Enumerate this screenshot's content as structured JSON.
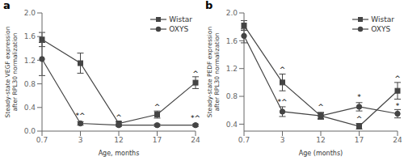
{
  "chart_data": [
    {
      "type": "line",
      "title": "a",
      "x_label": "Age, months",
      "y_label": "Steady-state VEGF expression\nafter RPL30 normalization",
      "categories": [
        "0.7",
        "3",
        "12",
        "17",
        "24"
      ],
      "series": [
        {
          "name": "Wistar",
          "color": "#444444",
          "marker": "square",
          "line_style": "solid",
          "values": [
            1.55,
            1.15,
            0.13,
            0.28,
            0.82
          ],
          "error": [
            0.12,
            0.17,
            0.03,
            0.06,
            0.1
          ]
        },
        {
          "name": "OXYS",
          "color": "#444444",
          "marker": "circle",
          "line_style": "solid",
          "values": [
            1.22,
            0.13,
            0.1,
            0.1,
            0.1
          ],
          "error": [
            0.28,
            0.03,
            0.02,
            0.02,
            0.02
          ]
        }
      ],
      "ylim": [
        0.0,
        2.0
      ],
      "yticks": [
        {
          "value": 0,
          "label": "0.0"
        },
        0.4,
        0.8,
        1.2,
        1.6,
        {
          "value": 2,
          "label": "2.0"
        }
      ],
      "annotations": [
        {
          "text": "*^",
          "x": "3",
          "y": 0.21
        },
        {
          "text": "^",
          "x": "12",
          "y": 0.18
        },
        {
          "text": "^",
          "x": "17",
          "y": 0.35
        },
        {
          "text": "^",
          "x": "24",
          "y": 0.92
        },
        {
          "text": "*^",
          "x": "24",
          "y": 0.17
        }
      ],
      "legend": "upper right",
      "grid": false
    },
    {
      "type": "line",
      "title": "b",
      "x_label": "Age (months)",
      "y_label": "Steady-state PEDF expression\nafter RPL30 normalization",
      "categories": [
        "0.7",
        "3",
        "12",
        "17",
        "24"
      ],
      "series": [
        {
          "name": "Wistar",
          "color": "#444444",
          "marker": "square",
          "line_style": "solid",
          "values": [
            1.82,
            1.0,
            0.52,
            0.37,
            0.88
          ],
          "error": [
            0.07,
            0.12,
            0.05,
            0.04,
            0.12
          ]
        },
        {
          "name": "OXYS",
          "color": "#444444",
          "marker": "circle",
          "line_style": "solid",
          "values": [
            1.67,
            0.58,
            0.52,
            0.65,
            0.55
          ],
          "error": [
            0.1,
            0.07,
            0.04,
            0.06,
            0.06
          ]
        }
      ],
      "ylim": [
        0.3,
        2.0
      ],
      "yticks": [
        0.4,
        0.8,
        1.2,
        1.6,
        {
          "value": 2,
          "label": "2.0"
        }
      ],
      "annotations": [
        {
          "text": "^",
          "x": "3",
          "y": 1.14
        },
        {
          "text": "*^",
          "x": "3",
          "y": 0.67
        },
        {
          "text": "^",
          "x": "12",
          "y": 0.6
        },
        {
          "text": "*",
          "x": "17",
          "y": 0.74
        },
        {
          "text": "^",
          "x": "17",
          "y": 0.43
        },
        {
          "text": "^",
          "x": "24",
          "y": 1.01
        },
        {
          "text": "*",
          "x": "24",
          "y": 0.62
        }
      ],
      "legend": "upper right",
      "grid": false
    }
  ]
}
